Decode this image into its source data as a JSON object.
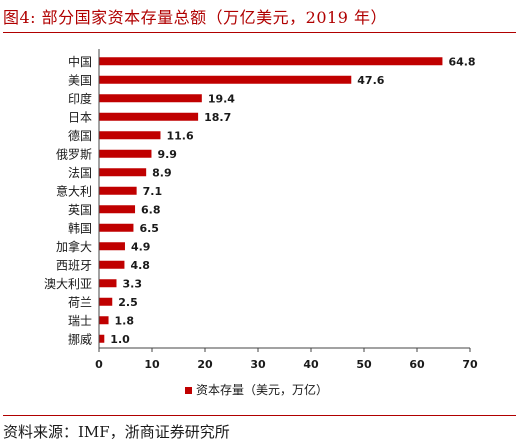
{
  "header": {
    "figure_title": "图4:  部分国家资本存量总额（万亿美元，2019 年）"
  },
  "footer": {
    "source": "资料来源：IMF，浙商证券研究所"
  },
  "colors": {
    "bar": "#c00000",
    "accent": "#b00000",
    "axis": "#444444",
    "text": "#1a1a1a"
  },
  "chart_data": {
    "type": "bar",
    "orientation": "horizontal",
    "categories": [
      "中国",
      "美国",
      "印度",
      "日本",
      "德国",
      "俄罗斯",
      "法国",
      "意大利",
      "英国",
      "韩国",
      "加拿大",
      "西班牙",
      "澳大利亚",
      "荷兰",
      "瑞士",
      "挪威"
    ],
    "series": [
      {
        "name": "资本存量（美元，万亿）",
        "values": [
          64.8,
          47.6,
          19.4,
          18.7,
          11.6,
          9.9,
          8.9,
          7.1,
          6.8,
          6.5,
          4.9,
          4.8,
          3.3,
          2.5,
          1.8,
          1.0
        ]
      }
    ],
    "value_labels": [
      "64.8",
      "47.6",
      "19.4",
      "18.7",
      "11.6",
      "9.9",
      "8.9",
      "7.1",
      "6.8",
      "6.5",
      "4.9",
      "4.8",
      "3.3",
      "2.5",
      "1.8",
      "1.0"
    ],
    "xlim": [
      0,
      70
    ],
    "xticks": [
      0,
      10,
      20,
      30,
      40,
      50,
      60,
      70
    ],
    "grid": false,
    "legend_position": "bottom"
  }
}
